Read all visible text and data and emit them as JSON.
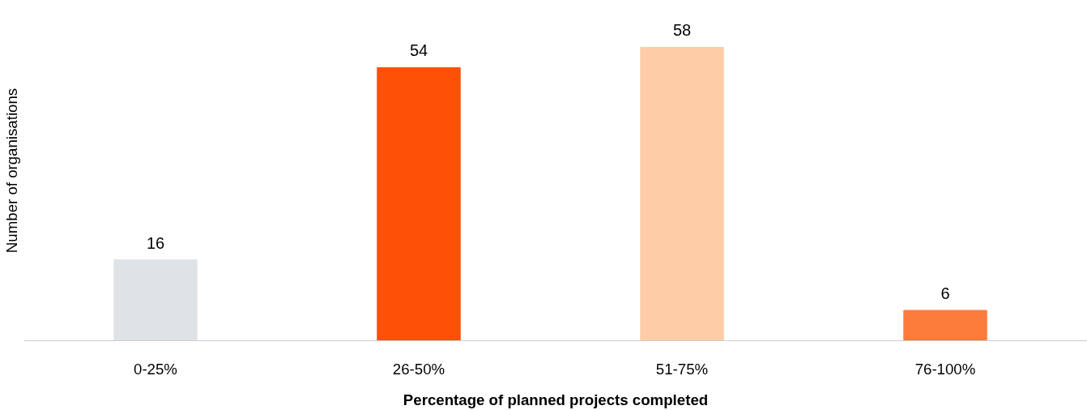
{
  "chart_data": {
    "type": "bar",
    "xlabel": "Percentage of planned projects completed",
    "ylabel": "Number of organisations",
    "categories": [
      "0-25%",
      "26-50%",
      "51-75%",
      "76-100%"
    ],
    "values": [
      16,
      54,
      58,
      6
    ],
    "colors": [
      "#dfe3e6",
      "#fd5108",
      "#fecca6",
      "#fe7c3b"
    ],
    "data_labels": true,
    "grid": false
  }
}
